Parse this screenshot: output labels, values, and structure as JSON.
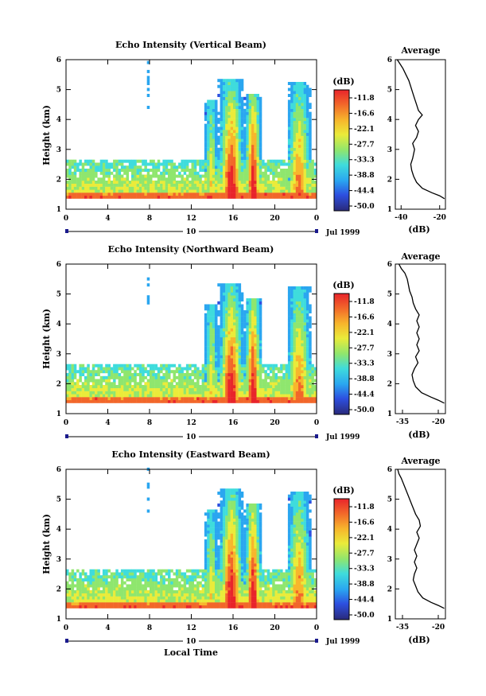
{
  "chart_data": [
    {
      "type": "heatmap",
      "title": "Echo Intensity (Vertical Beam)",
      "ylabel": "Height (km)",
      "xlabel": "",
      "x_ticks": [
        "0",
        "4",
        "8",
        "12",
        "16",
        "20",
        "0"
      ],
      "y_ticks": [
        "1",
        "2",
        "3",
        "4",
        "5",
        "6"
      ],
      "xlim": [
        0,
        24
      ],
      "ylim": [
        1,
        6
      ],
      "date_axis_label": "10",
      "date_label": "Jul 1999",
      "colorbar": {
        "unit": "(dB)",
        "ticks": [
          "-11.8",
          "-16.6",
          "-22.1",
          "-27.7",
          "-33.3",
          "-38.8",
          "-44.4",
          "-50.0"
        ]
      },
      "profile": {
        "title": "Average",
        "xlabel": "(dB)",
        "x_ticks": [
          "-40",
          "-20"
        ],
        "xlim": [
          -43,
          -17
        ],
        "ylim": [
          1,
          6
        ],
        "points": [
          [
            -17.5,
            1.35
          ],
          [
            -20,
            1.45
          ],
          [
            -24,
            1.55
          ],
          [
            -29,
            1.7
          ],
          [
            -32,
            1.9
          ],
          [
            -33.5,
            2.1
          ],
          [
            -34.5,
            2.3
          ],
          [
            -35,
            2.5
          ],
          [
            -34,
            2.7
          ],
          [
            -33,
            3.0
          ],
          [
            -34,
            3.2
          ],
          [
            -32,
            3.4
          ],
          [
            -31,
            3.6
          ],
          [
            -32.5,
            3.8
          ],
          [
            -31,
            4.0
          ],
          [
            -29,
            4.15
          ],
          [
            -31,
            4.3
          ],
          [
            -32,
            4.5
          ],
          [
            -33,
            4.7
          ],
          [
            -34,
            4.9
          ],
          [
            -35,
            5.1
          ],
          [
            -36,
            5.3
          ],
          [
            -37.5,
            5.5
          ],
          [
            -39,
            5.7
          ],
          [
            -40.5,
            5.85
          ],
          [
            -42,
            6.0
          ]
        ]
      }
    },
    {
      "type": "heatmap",
      "title": "Echo Intensity (Northward Beam)",
      "ylabel": "Height (km)",
      "xlabel": "",
      "x_ticks": [
        "0",
        "4",
        "8",
        "12",
        "16",
        "20",
        "0"
      ],
      "y_ticks": [
        "1",
        "2",
        "3",
        "4",
        "5",
        "6"
      ],
      "xlim": [
        0,
        24
      ],
      "ylim": [
        1,
        6
      ],
      "date_axis_label": "10",
      "date_label": "Jul 1999",
      "colorbar": {
        "unit": "(dB)",
        "ticks": [
          "-11.8",
          "-16.6",
          "-22.1",
          "-27.7",
          "-33.3",
          "-38.8",
          "-44.4",
          "-50.0"
        ]
      },
      "profile": {
        "title": "Average",
        "xlabel": "(dB)",
        "x_ticks": [
          "-35",
          "-20"
        ],
        "xlim": [
          -38,
          -17
        ],
        "ylim": [
          1,
          6
        ],
        "points": [
          [
            -17.5,
            1.35
          ],
          [
            -20,
            1.45
          ],
          [
            -23,
            1.55
          ],
          [
            -27,
            1.7
          ],
          [
            -29.5,
            1.9
          ],
          [
            -30.5,
            2.1
          ],
          [
            -31,
            2.3
          ],
          [
            -30,
            2.5
          ],
          [
            -28.5,
            2.7
          ],
          [
            -29.5,
            2.9
          ],
          [
            -28,
            3.1
          ],
          [
            -29,
            3.3
          ],
          [
            -28,
            3.5
          ],
          [
            -29,
            3.7
          ],
          [
            -28,
            3.9
          ],
          [
            -29,
            4.1
          ],
          [
            -28,
            4.3
          ],
          [
            -29.5,
            4.5
          ],
          [
            -30.5,
            4.7
          ],
          [
            -31,
            4.9
          ],
          [
            -32,
            5.1
          ],
          [
            -32.5,
            5.3
          ],
          [
            -33,
            5.5
          ],
          [
            -34,
            5.7
          ],
          [
            -35.5,
            5.85
          ],
          [
            -36.5,
            6.0
          ]
        ]
      }
    },
    {
      "type": "heatmap",
      "title": "Echo Intensity (Eastward Beam)",
      "ylabel": "Height (km)",
      "xlabel": "Local Time",
      "x_ticks": [
        "0",
        "4",
        "8",
        "12",
        "16",
        "20",
        "0"
      ],
      "y_ticks": [
        "1",
        "2",
        "3",
        "4",
        "5",
        "6"
      ],
      "xlim": [
        0,
        24
      ],
      "ylim": [
        1,
        6
      ],
      "date_axis_label": "10",
      "date_label": "Jul 1999",
      "colorbar": {
        "unit": "(dB)",
        "ticks": [
          "-11.8",
          "-16.6",
          "-22.1",
          "-27.7",
          "-33.3",
          "-38.8",
          "-44.4",
          "-50.0"
        ]
      },
      "profile": {
        "title": "Average",
        "xlabel": "(dB)",
        "x_ticks": [
          "-35",
          "-20"
        ],
        "xlim": [
          -38,
          -17
        ],
        "ylim": [
          1,
          6
        ],
        "points": [
          [
            -17.5,
            1.35
          ],
          [
            -20,
            1.45
          ],
          [
            -23,
            1.55
          ],
          [
            -26.5,
            1.7
          ],
          [
            -28.5,
            1.9
          ],
          [
            -29.5,
            2.1
          ],
          [
            -30.5,
            2.3
          ],
          [
            -30,
            2.5
          ],
          [
            -29,
            2.7
          ],
          [
            -30,
            2.9
          ],
          [
            -29,
            3.1
          ],
          [
            -30,
            3.3
          ],
          [
            -29,
            3.5
          ],
          [
            -28,
            3.7
          ],
          [
            -29,
            3.9
          ],
          [
            -27.5,
            4.1
          ],
          [
            -28,
            4.3
          ],
          [
            -29.5,
            4.5
          ],
          [
            -30.5,
            4.7
          ],
          [
            -31.5,
            4.9
          ],
          [
            -32.5,
            5.1
          ],
          [
            -33.5,
            5.3
          ],
          [
            -34.5,
            5.5
          ],
          [
            -35.5,
            5.7
          ],
          [
            -36.5,
            5.85
          ],
          [
            -37,
            6.0
          ]
        ]
      }
    }
  ]
}
